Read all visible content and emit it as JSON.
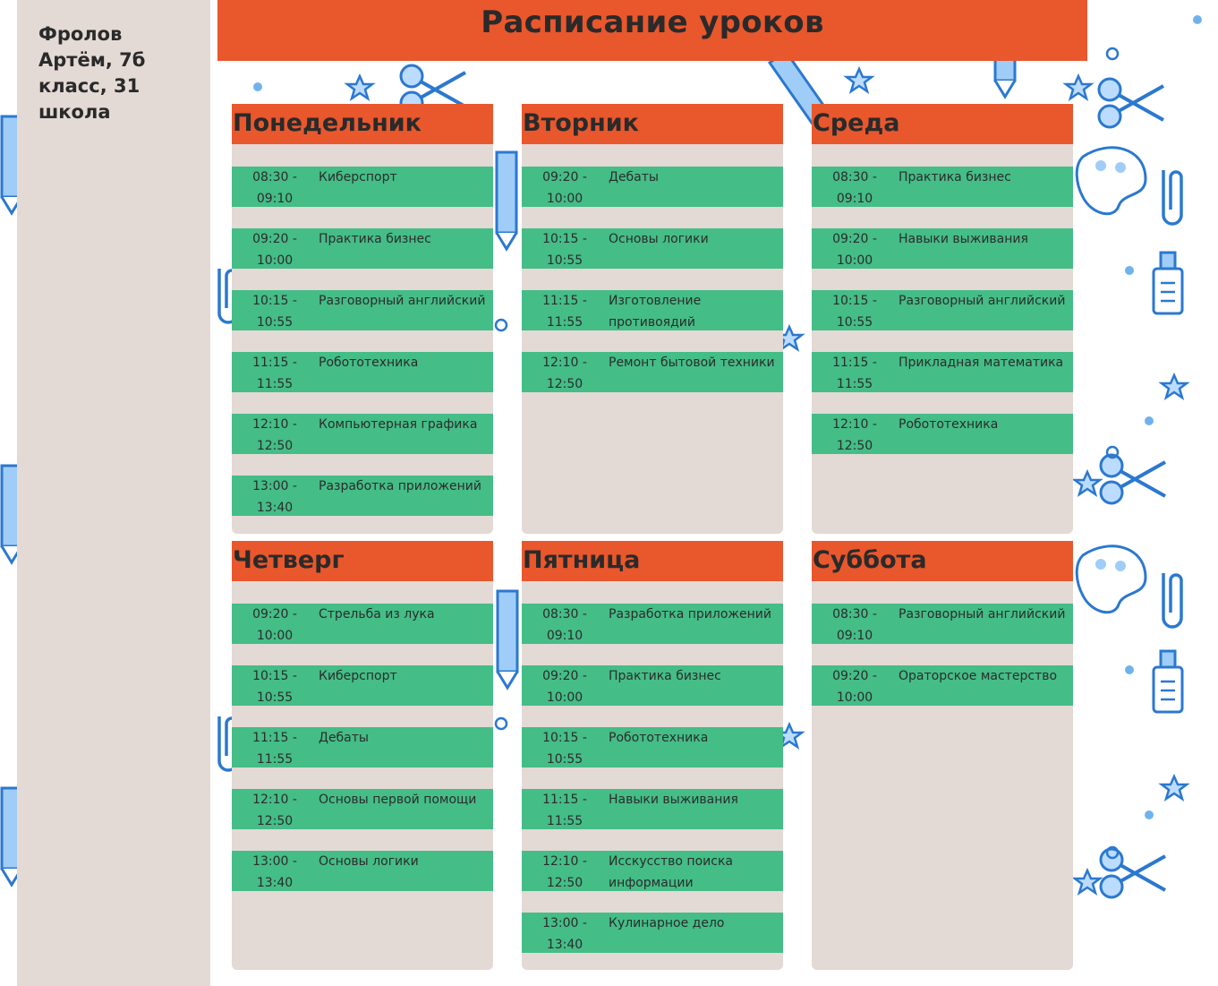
{
  "header": {
    "title": "Расписание уроков"
  },
  "sidebar": {
    "student": "Фролов Артём, 7б класс, 31 школа"
  },
  "days": [
    {
      "name": "Понедельник",
      "lessons": [
        {
          "time": "08:30 - 09:10",
          "subject": "Киберспорт"
        },
        {
          "time": "09:20 - 10:00",
          "subject": "Практика бизнес"
        },
        {
          "time": "10:15 - 10:55",
          "subject": "Разговорный английский"
        },
        {
          "time": "11:15 - 11:55",
          "subject": "Робототехника"
        },
        {
          "time": "12:10 - 12:50",
          "subject": "Компьютерная графика"
        },
        {
          "time": "13:00 - 13:40",
          "subject": "Разработка приложений"
        }
      ]
    },
    {
      "name": "Вторник",
      "lessons": [
        {
          "time": "09:20 - 10:00",
          "subject": "Дебаты"
        },
        {
          "time": "10:15 - 10:55",
          "subject": "Основы логики"
        },
        {
          "time": "11:15 - 11:55",
          "subject": "Изготовление противоядий"
        },
        {
          "time": "12:10 - 12:50",
          "subject": "Ремонт бытовой техники"
        }
      ]
    },
    {
      "name": "Среда",
      "lessons": [
        {
          "time": "08:30 - 09:10",
          "subject": "Практика бизнес"
        },
        {
          "time": "09:20 - 10:00",
          "subject": "Навыки выживания"
        },
        {
          "time": "10:15 - 10:55",
          "subject": "Разговорный английский"
        },
        {
          "time": "11:15 - 11:55",
          "subject": "Прикладная математика"
        },
        {
          "time": "12:10 - 12:50",
          "subject": "Робототехника"
        }
      ]
    },
    {
      "name": "Четверг",
      "lessons": [
        {
          "time": "09:20 - 10:00",
          "subject": "Стрельба из лука"
        },
        {
          "time": "10:15 - 10:55",
          "subject": "Киберспорт"
        },
        {
          "time": "11:15 - 11:55",
          "subject": "Дебаты"
        },
        {
          "time": "12:10 - 12:50",
          "subject": "Основы первой помощи"
        },
        {
          "time": "13:00 - 13:40",
          "subject": "Основы логики"
        }
      ]
    },
    {
      "name": "Пятница",
      "lessons": [
        {
          "time": "08:30 - 09:10",
          "subject": "Разработка приложений"
        },
        {
          "time": "09:20 - 10:00",
          "subject": "Практика бизнес"
        },
        {
          "time": "10:15 - 10:55",
          "subject": "Робототехника"
        },
        {
          "time": "11:15 - 11:55",
          "subject": "Навыки выживания"
        },
        {
          "time": "12:10 - 12:50",
          "subject": "Исскусство поиска информации"
        },
        {
          "time": "13:00 - 13:40",
          "subject": "Кулинарное дело"
        }
      ]
    },
    {
      "name": "Суббота",
      "lessons": [
        {
          "time": "08:30 - 09:10",
          "subject": "Разговорный английский"
        },
        {
          "time": "09:20 - 10:00",
          "subject": "Ораторское мастерство"
        }
      ]
    }
  ],
  "colors": {
    "accent": "#e9572d",
    "lesson": "#44bd87",
    "panel": "#e3d9d5",
    "pattern": "#2f7fd6"
  },
  "background": {
    "pattern_icons": [
      "scissors-icon",
      "star-icon",
      "pencil-icon",
      "paperclip-icon",
      "glue-bottle-icon",
      "palette-icon",
      "ruler-icon",
      "backpack-icon"
    ]
  }
}
